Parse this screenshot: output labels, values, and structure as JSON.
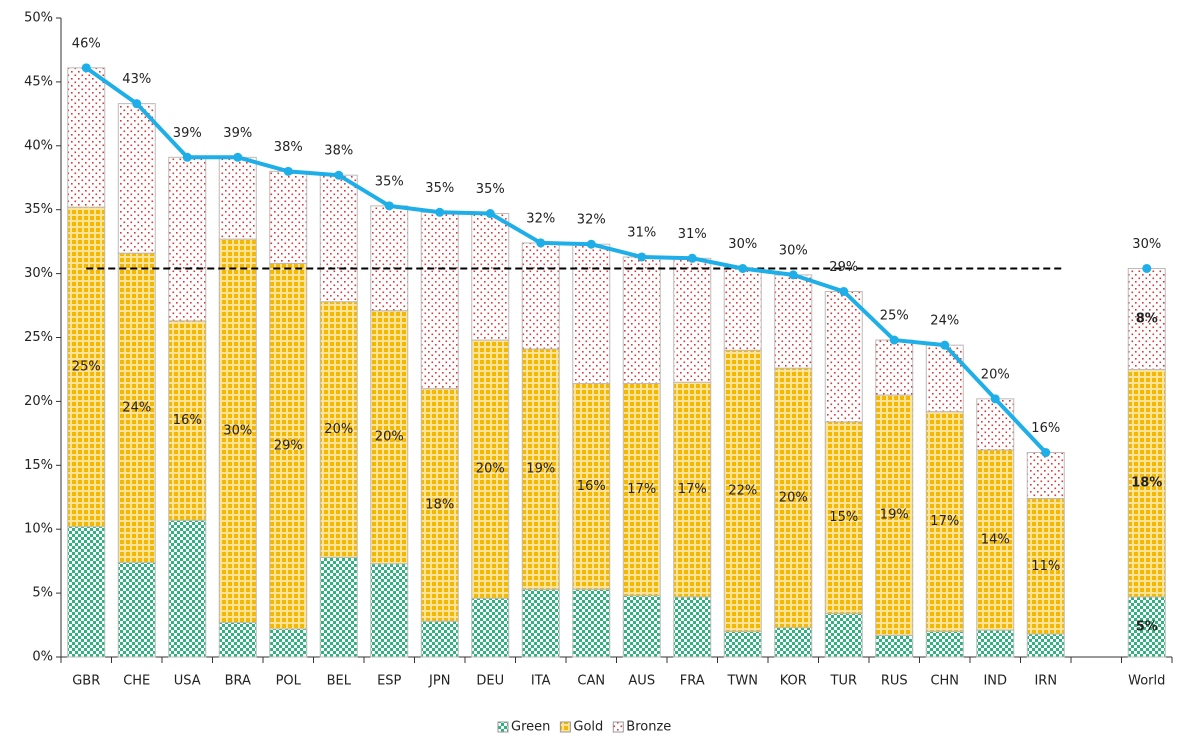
{
  "chart_data": {
    "type": "bar",
    "stacked": true,
    "categories": [
      "GBR",
      "CHE",
      "USA",
      "BRA",
      "POL",
      "BEL",
      "ESP",
      "JPN",
      "DEU",
      "ITA",
      "CAN",
      "AUS",
      "FRA",
      "TWN",
      "KOR",
      "TUR",
      "RUS",
      "CHN",
      "IND",
      "IRN",
      null,
      "World"
    ],
    "series": [
      {
        "name": "Green",
        "color": "#2fb37c",
        "values": [
          10.2,
          7.4,
          10.7,
          2.7,
          2.2,
          7.8,
          7.3,
          2.8,
          4.6,
          5.3,
          5.3,
          4.8,
          4.7,
          2.0,
          2.3,
          3.4,
          1.7,
          2.0,
          2.1,
          1.8,
          null,
          4.7
        ],
        "value_labels": [
          null,
          null,
          null,
          null,
          null,
          null,
          null,
          null,
          null,
          null,
          null,
          null,
          null,
          null,
          null,
          null,
          null,
          null,
          null,
          null,
          null,
          "5%"
        ]
      },
      {
        "name": "Gold",
        "color": "#f5b800",
        "values": [
          25.0,
          24.2,
          15.6,
          30.0,
          28.6,
          20.0,
          19.8,
          18.2,
          20.2,
          18.8,
          16.1,
          16.6,
          16.8,
          22.0,
          20.3,
          15.0,
          18.8,
          17.2,
          14.1,
          10.6,
          null,
          17.8
        ],
        "value_labels": [
          "25%",
          "24%",
          "16%",
          "30%",
          "29%",
          "20%",
          "20%",
          "18%",
          "20%",
          "19%",
          "16%",
          "17%",
          "17%",
          "22%",
          "20%",
          "15%",
          "19%",
          "17%",
          "14%",
          "11%",
          null,
          "18%"
        ]
      },
      {
        "name": "Bronze",
        "color": "#e03434",
        "values": [
          10.9,
          11.7,
          12.8,
          6.4,
          7.2,
          9.9,
          8.2,
          13.8,
          9.9,
          8.3,
          10.9,
          9.9,
          9.7,
          6.4,
          7.3,
          10.2,
          4.3,
          5.2,
          4.0,
          3.6,
          null,
          7.9
        ],
        "value_labels": [
          null,
          null,
          null,
          null,
          null,
          null,
          null,
          null,
          null,
          null,
          null,
          null,
          null,
          null,
          null,
          null,
          null,
          null,
          null,
          null,
          null,
          "8%"
        ]
      }
    ],
    "line": {
      "color": "#1eaee8",
      "values": [
        46.1,
        43.3,
        39.1,
        39.1,
        38.0,
        37.7,
        35.3,
        34.8,
        34.7,
        32.4,
        32.3,
        31.3,
        31.2,
        30.4,
        29.9,
        28.6,
        24.8,
        24.4,
        20.2,
        16.0,
        null,
        30.4
      ],
      "value_labels": [
        "46%",
        "43%",
        "39%",
        "39%",
        "38%",
        "38%",
        "35%",
        "35%",
        "35%",
        "32%",
        "32%",
        "31%",
        "31%",
        "30%",
        "30%",
        "29%",
        "25%",
        "24%",
        "20%",
        "16%",
        null,
        "30%"
      ]
    },
    "reference_line": 30.4,
    "ylim": [
      0,
      50
    ],
    "yticks": [
      {
        "value": 0,
        "label": "0%"
      },
      {
        "value": 5,
        "label": "5%"
      },
      {
        "value": 10,
        "label": "10%"
      },
      {
        "value": 15,
        "label": "15%"
      },
      {
        "value": 20,
        "label": "20%"
      },
      {
        "value": 25,
        "label": "25%"
      },
      {
        "value": 30,
        "label": "30%"
      },
      {
        "value": 35,
        "label": "35%"
      },
      {
        "value": 40,
        "label": "40%"
      },
      {
        "value": 45,
        "label": "45%"
      },
      {
        "value": 50,
        "label": "50%"
      }
    ],
    "legend": "bottom"
  }
}
